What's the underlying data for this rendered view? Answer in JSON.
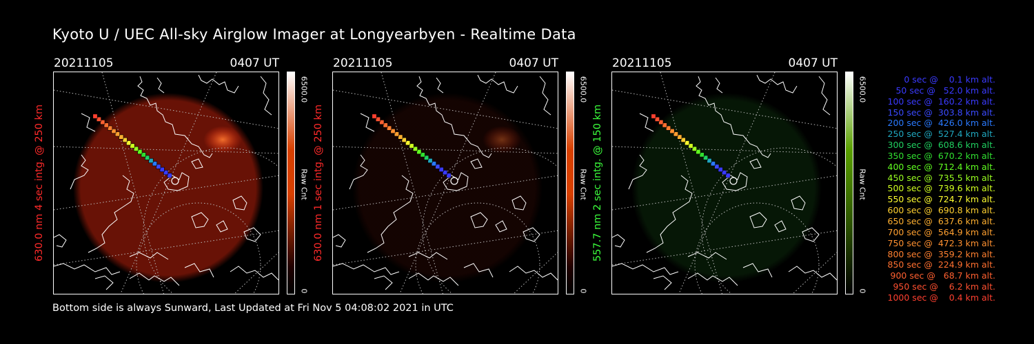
{
  "title": "Kyoto U / UEC All-sky Airglow Imager at Longyearbyen - Realtime Data",
  "footer": "Bottom side is always Sunward, Last Updated at Fri Nov  5 04:08:02 2021 in UTC",
  "panels": [
    {
      "date": "20211105",
      "time": "0407 UT",
      "ylabel": "630.0 nm 4 sec intg. @ 250 km",
      "label_color": "#ff2a2a",
      "colorbar_top_color": "#ffffff",
      "colorbar_mid_color": "#d84000",
      "cbar_max": "6500.0",
      "cbar_min": "0",
      "cbar_unit": "Raw Cnt",
      "glow_color": "#8a1808",
      "glow_level": 0.75,
      "aurora_spot": true
    },
    {
      "date": "20211105",
      "time": "0407 UT",
      "ylabel": "630.0 nm 1 sec intg. @ 250 km",
      "label_color": "#ff2a2a",
      "colorbar_top_color": "#ffffff",
      "colorbar_mid_color": "#d84000",
      "cbar_max": "6500.0",
      "cbar_min": "0",
      "cbar_unit": "Raw Cnt",
      "glow_color": "#3a0a04",
      "glow_level": 0.35,
      "aurora_spot": true
    },
    {
      "date": "20211105",
      "time": "0407 UT",
      "ylabel": "557.7 nm 2 sec intg. @ 150 km",
      "label_color": "#3cff3c",
      "colorbar_top_color": "#ffffff",
      "colorbar_mid_color": "#5aa000",
      "cbar_max": "6500.0",
      "cbar_min": "0",
      "cbar_unit": "Raw Cnt",
      "glow_color": "#103a10",
      "glow_level": 0.4,
      "aurora_spot": false
    }
  ],
  "legend": [
    {
      "text": "   0 sec @    0.1 km alt.",
      "color": "#3a3aff"
    },
    {
      "text": "  50 sec @   52.0 km alt.",
      "color": "#3a3aff"
    },
    {
      "text": " 100 sec @  160.2 km alt.",
      "color": "#3a3aff"
    },
    {
      "text": " 150 sec @  303.8 km alt.",
      "color": "#3a4aff"
    },
    {
      "text": " 200 sec @  426.0 km alt.",
      "color": "#2a7aff"
    },
    {
      "text": " 250 sec @  527.4 km alt.",
      "color": "#20a8c0"
    },
    {
      "text": " 300 sec @  608.6 km alt.",
      "color": "#20d060"
    },
    {
      "text": " 350 sec @  670.2 km alt.",
      "color": "#30e030"
    },
    {
      "text": " 400 sec @  712.4 km alt.",
      "color": "#60ff20"
    },
    {
      "text": " 450 sec @  735.5 km alt.",
      "color": "#9aff20"
    },
    {
      "text": " 500 sec @  739.6 km alt.",
      "color": "#d0ff20"
    },
    {
      "text": " 550 sec @  724.7 km alt.",
      "color": "#ffff30"
    },
    {
      "text": " 600 sec @  690.8 km alt.",
      "color": "#ffd030"
    },
    {
      "text": " 650 sec @  637.6 km alt.",
      "color": "#ffb030"
    },
    {
      "text": " 700 sec @  564.9 km alt.",
      "color": "#ffa030"
    },
    {
      "text": " 750 sec @  472.3 km alt.",
      "color": "#ff9030"
    },
    {
      "text": " 800 sec @  359.2 km alt.",
      "color": "#ff8030"
    },
    {
      "text": " 850 sec @  224.9 km alt.",
      "color": "#ff7030"
    },
    {
      "text": " 900 sec @   68.7 km alt.",
      "color": "#ff6030"
    },
    {
      "text": " 950 sec @    6.2 km alt.",
      "color": "#ff5030"
    },
    {
      "text": "1000 sec @    0.4 km alt.",
      "color": "#ff4030"
    }
  ],
  "trajectory_colors": [
    "#3a3aff",
    "#3a3aff",
    "#3a3aff",
    "#3a4aff",
    "#2a7aff",
    "#20a8c0",
    "#20d060",
    "#30e030",
    "#60ff20",
    "#9aff20",
    "#d0ff20",
    "#ffff30",
    "#ffd030",
    "#ffb030",
    "#ffa030",
    "#ff9030",
    "#ff8030",
    "#ff7030",
    "#ff6030",
    "#ff5030",
    "#ff4030"
  ]
}
